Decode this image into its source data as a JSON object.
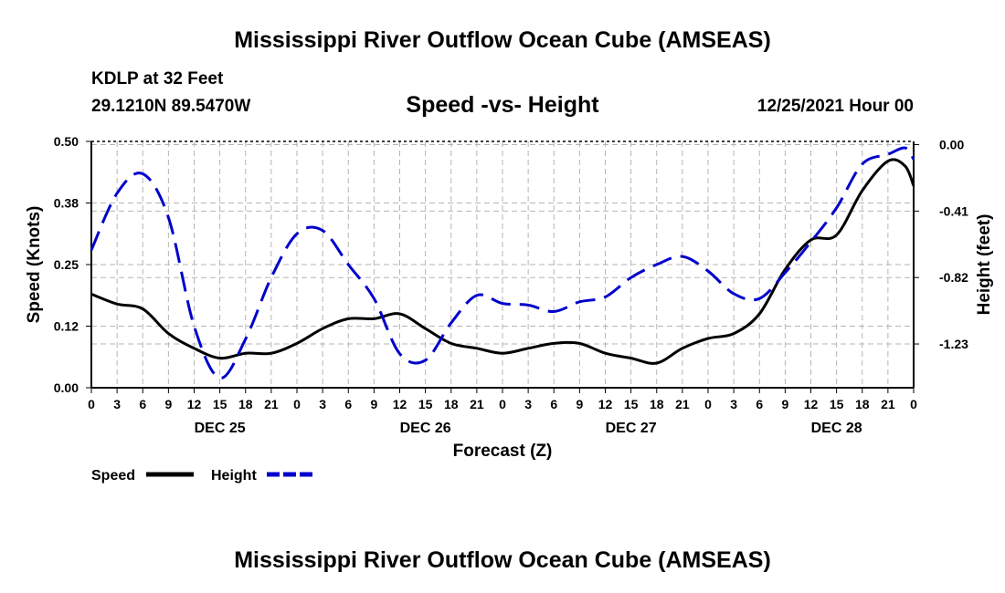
{
  "header": {
    "title": "Mississippi River Outflow Ocean Cube (AMSEAS)",
    "station": "KDLP at 32 Feet",
    "coords": "29.1210N  89.5470W",
    "subtitle": "Speed -vs- Height",
    "datetime": "12/25/2021 Hour 00"
  },
  "footer": {
    "title": "Mississippi River Outflow Ocean Cube (AMSEAS)"
  },
  "chart_data": {
    "type": "line",
    "xlabel": "Forecast (Z)",
    "ylabel_left": "Speed (Knots)",
    "ylabel_right": "Height (feet)",
    "ylim_left": [
      0,
      0.5
    ],
    "ylim_right": [
      -1.5,
      0.02
    ],
    "left_ticks": [
      "0.00",
      "0.12",
      "0.25",
      "0.38",
      "0.50"
    ],
    "left_tick_values": [
      0,
      0.125,
      0.25,
      0.375,
      0.5
    ],
    "right_ticks": [
      "0.00",
      "-0.41",
      "-0.82",
      "-1.23"
    ],
    "right_tick_values": [
      0,
      -0.41,
      -0.82,
      -1.23
    ],
    "x_tick_labels": [
      "0",
      "3",
      "6",
      "9",
      "12",
      "15",
      "18",
      "21",
      "0",
      "3",
      "6",
      "9",
      "12",
      "15",
      "18",
      "21",
      "0",
      "3",
      "6",
      "9",
      "12",
      "15",
      "18",
      "21",
      "0",
      "3",
      "6",
      "9",
      "12",
      "15",
      "18",
      "21",
      "0"
    ],
    "day_labels": [
      {
        "label": "DEC 25",
        "hour": 15
      },
      {
        "label": "DEC 26",
        "hour": 39
      },
      {
        "label": "DEC 27",
        "hour": 63
      },
      {
        "label": "DEC 28",
        "hour": 87
      }
    ],
    "grid": true,
    "legend_position": "bottom-left",
    "x_hours": [
      0,
      3,
      6,
      9,
      12,
      15,
      18,
      21,
      24,
      27,
      30,
      33,
      36,
      39,
      42,
      45,
      48,
      51,
      54,
      57,
      60,
      63,
      66,
      69,
      72,
      75,
      78,
      81,
      84,
      87,
      90,
      93,
      95,
      96
    ],
    "series": [
      {
        "name": "Speed",
        "axis": "left",
        "color": "#000000",
        "style": "solid",
        "values": [
          0.19,
          0.17,
          0.16,
          0.11,
          0.08,
          0.06,
          0.07,
          0.07,
          0.09,
          0.12,
          0.14,
          0.14,
          0.15,
          0.12,
          0.09,
          0.08,
          0.07,
          0.08,
          0.09,
          0.09,
          0.07,
          0.06,
          0.05,
          0.08,
          0.1,
          0.11,
          0.15,
          0.24,
          0.3,
          0.31,
          0.4,
          0.46,
          0.45,
          0.41
        ]
      },
      {
        "name": "Height",
        "axis": "right",
        "color": "#0000cc",
        "style": "dashed",
        "values": [
          -0.65,
          -0.3,
          -0.18,
          -0.45,
          -1.12,
          -1.44,
          -1.2,
          -0.82,
          -0.55,
          -0.53,
          -0.74,
          -0.95,
          -1.29,
          -1.33,
          -1.1,
          -0.93,
          -0.98,
          -0.99,
          -1.03,
          -0.97,
          -0.94,
          -0.82,
          -0.74,
          -0.69,
          -0.78,
          -0.92,
          -0.95,
          -0.79,
          -0.6,
          -0.39,
          -0.12,
          -0.06,
          -0.02,
          -0.09
        ]
      }
    ]
  }
}
